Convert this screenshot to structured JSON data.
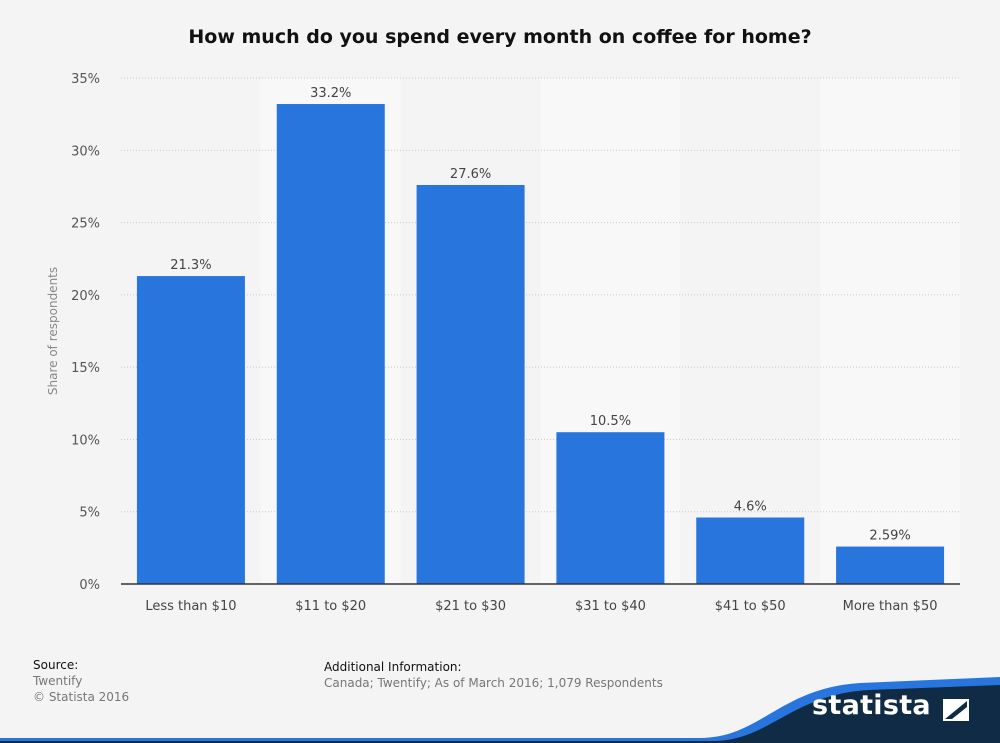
{
  "chart_data": {
    "type": "bar",
    "title": "How much do you spend every month on coffee for home?",
    "categories": [
      "Less than $10",
      "$11 to $20",
      "$21 to $30",
      "$31 to $40",
      "$41 to $50",
      "More than $50"
    ],
    "values": [
      21.3,
      33.2,
      27.6,
      10.5,
      4.6,
      2.59
    ],
    "value_labels": [
      "21.3%",
      "33.2%",
      "27.6%",
      "10.5%",
      "4.6%",
      "2.59%"
    ],
    "ylabel": "Share of respondents",
    "xlabel": "",
    "ylim": [
      0,
      35
    ],
    "yticks": [
      0,
      5,
      10,
      15,
      20,
      25,
      30,
      35
    ],
    "ytick_labels": [
      "0%",
      "5%",
      "10%",
      "15%",
      "20%",
      "25%",
      "30%",
      "35%"
    ],
    "grid": true,
    "bar_color": "#2876dd"
  },
  "footer": {
    "source_label": "Source:",
    "source_name": "Twentify",
    "copyright": "© Statista 2016",
    "additional_label": "Additional Information:",
    "additional_text": "Canada; Twentify; As of March 2016; 1,079 Respondents"
  },
  "brand": {
    "name": "statista",
    "dark_color": "#0f2b46",
    "accent_color": "#2876dd"
  }
}
